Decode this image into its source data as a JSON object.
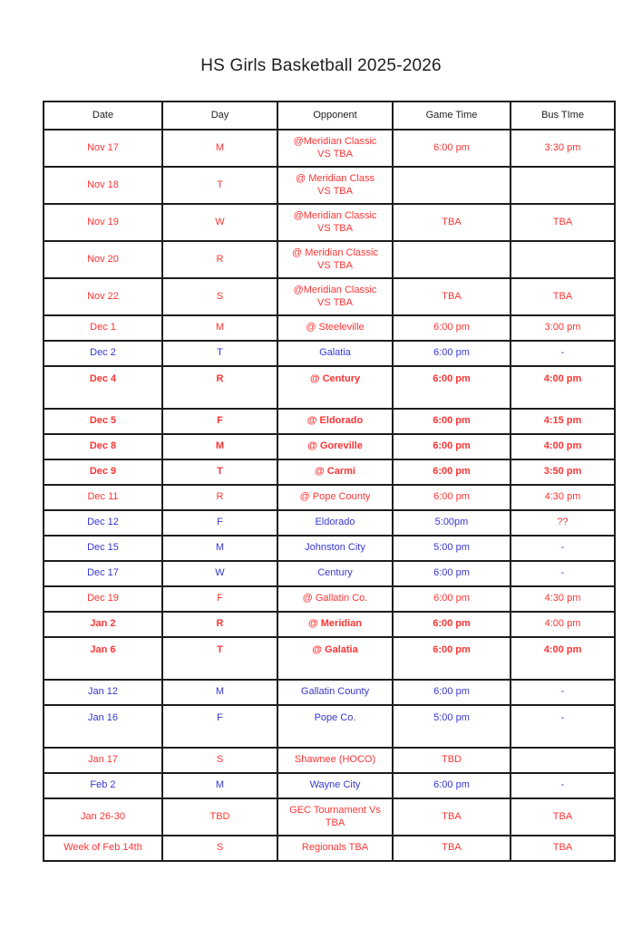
{
  "page": {
    "title": "HS Girls Basketball 2025-2026"
  },
  "colors": {
    "red": "#ff3434",
    "blue": "#3737d4",
    "header_text": "#222222",
    "border": "#1c1c1c"
  },
  "table": {
    "columns": [
      "Date",
      "Day",
      "Opponent",
      "Game Time",
      "Bus TIme"
    ],
    "rows": [
      {
        "date": "Nov 17",
        "day": "M",
        "opponent": "@Meridian Classic\nVS TBA",
        "game_time": "6:00 pm",
        "bus_time": "3:30 pm",
        "color": "red",
        "bold": false,
        "tall": true,
        "pad_bottom": false
      },
      {
        "date": "Nov 18",
        "day": "T",
        "opponent": "@ Meridian Class\nVS TBA",
        "game_time": "",
        "bus_time": "",
        "color": "red",
        "bold": false,
        "tall": true,
        "pad_bottom": false
      },
      {
        "date": "Nov 19",
        "day": "W",
        "opponent": "@Meridian Classic\nVS TBA",
        "game_time": "TBA",
        "bus_time": "TBA",
        "color": "red",
        "bold": false,
        "tall": true,
        "pad_bottom": false
      },
      {
        "date": "Nov 20",
        "day": "R",
        "opponent": "@ Meridian Classic\nVS TBA",
        "game_time": "",
        "bus_time": "",
        "color": "red",
        "bold": false,
        "tall": true,
        "pad_bottom": false
      },
      {
        "date": "Nov 22",
        "day": "S",
        "opponent": "@Meridian Classic\nVS TBA",
        "game_time": "TBA",
        "bus_time": "TBA",
        "color": "red",
        "bold": false,
        "tall": true,
        "pad_bottom": false
      },
      {
        "date": "Dec 1",
        "day": "M",
        "opponent": "@ Steeleville",
        "game_time": "6:00 pm",
        "bus_time": "3:00 pm",
        "color": "red",
        "bold": false,
        "tall": false,
        "pad_bottom": false
      },
      {
        "date": "Dec 2",
        "day": "T",
        "opponent": "Galatia",
        "game_time": "6:00  pm",
        "bus_time": "-",
        "color": "blue",
        "bold": false,
        "tall": false,
        "pad_bottom": false
      },
      {
        "date": "Dec 4",
        "day": "R",
        "opponent": "@ Century",
        "game_time": "6:00 pm",
        "bus_time": "4:00 pm",
        "color": "red",
        "bold": true,
        "tall": true,
        "pad_bottom": true
      },
      {
        "date": "Dec 5",
        "day": "F",
        "opponent": "@ Eldorado",
        "game_time": "6:00 pm",
        "bus_time": "4:15 pm",
        "color": "red",
        "bold": true,
        "tall": false,
        "pad_bottom": false
      },
      {
        "date": "Dec 8",
        "day": "M",
        "opponent": "@ Goreville",
        "game_time": "6:00 pm",
        "bus_time": "4:00 pm",
        "color": "red",
        "bold": true,
        "tall": false,
        "pad_bottom": false
      },
      {
        "date": "Dec 9",
        "day": "T",
        "opponent": "@ Carmi",
        "game_time": "6:00 pm",
        "bus_time": "3:50 pm",
        "color": "red",
        "bold": true,
        "tall": false,
        "pad_bottom": false
      },
      {
        "date": "Dec 11",
        "day": "R",
        "opponent": "@ Pope County",
        "game_time": "6:00 pm",
        "bus_time": "4:30 pm",
        "color": "red",
        "bold": false,
        "tall": false,
        "pad_bottom": false
      },
      {
        "date": "Dec 12",
        "day": "F",
        "opponent": "Eldorado",
        "game_time": "5:00pm",
        "bus_time": "??",
        "color": "blue",
        "bold": false,
        "tall": false,
        "pad_bottom": false,
        "bus_color": "red"
      },
      {
        "date": "Dec 15",
        "day": "M",
        "opponent": "Johnston City",
        "game_time": "5:00  pm",
        "bus_time": "-",
        "color": "blue",
        "bold": false,
        "tall": false,
        "pad_bottom": false
      },
      {
        "date": "Dec 17",
        "day": "W",
        "opponent": "Century",
        "game_time": "6:00 pm",
        "bus_time": "-",
        "color": "blue",
        "bold": false,
        "tall": false,
        "pad_bottom": false
      },
      {
        "date": "Dec 19",
        "day": "F",
        "opponent": "@ Gallatin Co.",
        "game_time": "6:00 pm",
        "bus_time": "4:30 pm",
        "color": "red",
        "bold": false,
        "tall": false,
        "pad_bottom": false
      },
      {
        "date": "Jan 2",
        "day": "R",
        "opponent": "@ Meridian",
        "game_time": "6:00 pm",
        "bus_time": "4:00 pm",
        "color": "red",
        "bold": true,
        "tall": false,
        "pad_bottom": false,
        "bus_bold": false
      },
      {
        "date": "Jan 6",
        "day": "T",
        "opponent": "@ Galatia",
        "game_time": "6:00 pm",
        "bus_time": "4:00 pm",
        "color": "red",
        "bold": true,
        "tall": true,
        "pad_bottom": true
      },
      {
        "date": "Jan 12",
        "day": "M",
        "opponent": "Gallatin County",
        "game_time": "6:00 pm",
        "bus_time": "-",
        "color": "blue",
        "bold": false,
        "tall": false,
        "pad_bottom": false
      },
      {
        "date": "Jan 16",
        "day": "F",
        "opponent": "Pope Co.",
        "game_time": "5:00 pm",
        "bus_time": "-",
        "color": "blue",
        "bold": false,
        "tall": true,
        "pad_bottom": true
      },
      {
        "date": "Jan 17",
        "day": "S",
        "opponent": "Shawnee (HOCO)",
        "game_time": "TBD",
        "bus_time": "",
        "color": "red",
        "bold": false,
        "tall": false,
        "pad_bottom": false
      },
      {
        "date": "Feb 2",
        "day": "M",
        "opponent": "Wayne City",
        "game_time": "6:00 pm",
        "bus_time": "-",
        "color": "blue",
        "bold": false,
        "tall": false,
        "pad_bottom": false
      },
      {
        "date": "Jan 26-30",
        "day": "TBD",
        "opponent": "GEC Tournament Vs\nTBA",
        "game_time": "TBA",
        "bus_time": "TBA",
        "color": "red",
        "bold": false,
        "tall": true,
        "pad_bottom": false
      },
      {
        "date": "Week of Feb 14th",
        "day": "S",
        "opponent": "Regionals TBA",
        "game_time": "TBA",
        "bus_time": "TBA",
        "color": "red",
        "bold": false,
        "tall": false,
        "pad_bottom": false
      }
    ]
  }
}
